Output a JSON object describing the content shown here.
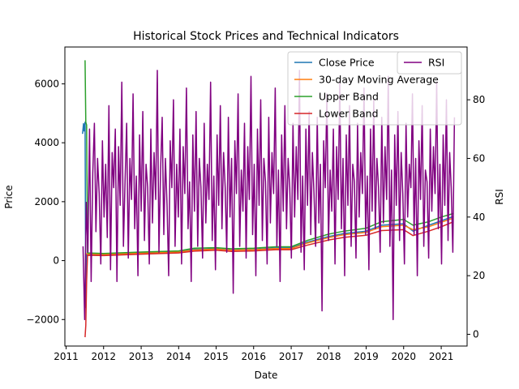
{
  "chart_data": {
    "type": "line",
    "title": "Historical Stock Prices and Technical Indicators",
    "xlabel": "Date",
    "ylabel": "Price",
    "ylabel_right": "RSI",
    "x_range": [
      "2010-12-20",
      "2021-09-10"
    ],
    "x_ticks": [
      "2011",
      "2012",
      "2013",
      "2014",
      "2015",
      "2016",
      "2017",
      "2018",
      "2019",
      "2020",
      "2021"
    ],
    "y_left_range": [
      -2900,
      7250
    ],
    "y_left_ticks": [
      -2000,
      0,
      2000,
      4000,
      6000
    ],
    "y_right_range": [
      -4,
      98
    ],
    "y_right_ticks": [
      0,
      20,
      40,
      60,
      80
    ],
    "grid": false,
    "legend_left": {
      "placement": "upper-right",
      "entries": [
        "Close Price",
        "30-day Moving Average",
        "Upper Band",
        "Lower Band"
      ]
    },
    "legend_right": {
      "placement": "upper-right",
      "entries": [
        "RSI"
      ]
    },
    "series": [
      {
        "name": "Close Price",
        "axis": "left",
        "color": "#1f77b4",
        "points": [
          [
            "2011-06-10",
            4300
          ],
          [
            "2011-06-20",
            4650
          ],
          [
            "2011-06-25",
            4400
          ],
          [
            "2011-07-05",
            4700
          ],
          [
            "2011-07-12",
            -1600
          ],
          [
            "2011-07-20",
            220
          ],
          [
            "2012-01-01",
            200
          ],
          [
            "2013-01-01",
            260
          ],
          [
            "2014-01-01",
            300
          ],
          [
            "2014-06-01",
            380
          ],
          [
            "2015-01-01",
            400
          ],
          [
            "2015-06-01",
            360
          ],
          [
            "2016-01-01",
            380
          ],
          [
            "2016-08-01",
            430
          ],
          [
            "2017-01-01",
            430
          ],
          [
            "2017-06-01",
            620
          ],
          [
            "2018-01-01",
            820
          ],
          [
            "2018-06-01",
            920
          ],
          [
            "2019-01-01",
            1000
          ],
          [
            "2019-06-01",
            1200
          ],
          [
            "2020-01-01",
            1250
          ],
          [
            "2020-04-01",
            1000
          ],
          [
            "2020-09-01",
            1200
          ],
          [
            "2021-01-01",
            1350
          ],
          [
            "2021-05-01",
            1500
          ]
        ]
      },
      {
        "name": "30-day Moving Average",
        "axis": "left",
        "color": "#ff7f0e",
        "points": [
          [
            "2011-07-05",
            230
          ],
          [
            "2012-01-01",
            210
          ],
          [
            "2013-01-01",
            250
          ],
          [
            "2014-01-01",
            290
          ],
          [
            "2014-06-01",
            360
          ],
          [
            "2015-01-01",
            390
          ],
          [
            "2015-06-01",
            350
          ],
          [
            "2016-01-01",
            370
          ],
          [
            "2016-08-01",
            410
          ],
          [
            "2017-01-01",
            410
          ],
          [
            "2017-06-01",
            590
          ],
          [
            "2018-01-01",
            780
          ],
          [
            "2018-06-01",
            880
          ],
          [
            "2019-01-01",
            960
          ],
          [
            "2019-06-01",
            1150
          ],
          [
            "2020-01-01",
            1200
          ],
          [
            "2020-04-01",
            1050
          ],
          [
            "2020-09-01",
            1150
          ],
          [
            "2021-01-01",
            1300
          ],
          [
            "2021-05-01",
            1450
          ]
        ]
      },
      {
        "name": "Upper Band",
        "axis": "left",
        "color": "#2ca02c",
        "points": [
          [
            "2011-07-05",
            6800
          ],
          [
            "2011-07-12",
            4700
          ],
          [
            "2011-07-20",
            4600
          ],
          [
            "2011-07-28",
            260
          ],
          [
            "2012-01-01",
            240
          ],
          [
            "2013-01-01",
            290
          ],
          [
            "2014-01-01",
            330
          ],
          [
            "2014-06-01",
            420
          ],
          [
            "2015-01-01",
            440
          ],
          [
            "2015-06-01",
            400
          ],
          [
            "2016-01-01",
            420
          ],
          [
            "2016-08-01",
            470
          ],
          [
            "2017-01-01",
            470
          ],
          [
            "2017-06-01",
            680
          ],
          [
            "2018-01-01",
            900
          ],
          [
            "2018-06-01",
            1000
          ],
          [
            "2019-01-01",
            1100
          ],
          [
            "2019-06-01",
            1320
          ],
          [
            "2020-01-01",
            1400
          ],
          [
            "2020-04-01",
            1200
          ],
          [
            "2020-09-01",
            1320
          ],
          [
            "2021-01-01",
            1480
          ],
          [
            "2021-05-01",
            1600
          ]
        ]
      },
      {
        "name": "Lower Band",
        "axis": "left",
        "color": "#d62728",
        "points": [
          [
            "2011-07-05",
            -2600
          ],
          [
            "2011-07-12",
            -2200
          ],
          [
            "2011-07-20",
            -700
          ],
          [
            "2011-07-28",
            180
          ],
          [
            "2012-01-01",
            170
          ],
          [
            "2013-01-01",
            220
          ],
          [
            "2014-01-01",
            260
          ],
          [
            "2014-06-01",
            320
          ],
          [
            "2015-01-01",
            350
          ],
          [
            "2015-06-01",
            310
          ],
          [
            "2016-01-01",
            330
          ],
          [
            "2016-08-01",
            370
          ],
          [
            "2017-01-01",
            370
          ],
          [
            "2017-06-01",
            520
          ],
          [
            "2018-01-01",
            700
          ],
          [
            "2018-06-01",
            790
          ],
          [
            "2019-01-01",
            860
          ],
          [
            "2019-06-01",
            1020
          ],
          [
            "2020-01-01",
            1050
          ],
          [
            "2020-04-01",
            850
          ],
          [
            "2020-09-01",
            1000
          ],
          [
            "2021-01-01",
            1150
          ],
          [
            "2021-05-01",
            1320
          ]
        ]
      },
      {
        "name": "RSI",
        "axis": "right",
        "color": "#800080",
        "start": "2011-06-15",
        "end": "2021-05-10",
        "values": [
          30,
          5,
          45,
          28,
          70,
          18,
          55,
          72,
          35,
          60,
          48,
          24,
          66,
          40,
          58,
          33,
          78,
          22,
          62,
          50,
          70,
          18,
          64,
          44,
          86,
          30,
          52,
          72,
          26,
          60,
          46,
          82,
          36,
          54,
          20,
          68,
          42,
          76,
          32,
          58,
          50,
          24,
          70,
          38,
          62,
          46,
          90,
          28,
          56,
          74,
          34,
          60,
          44,
          20,
          66,
          50,
          80,
          30,
          58,
          40,
          70,
          24,
          64,
          48,
          84,
          36,
          52,
          18,
          68,
          42,
          76,
          30,
          60,
          50,
          26,
          72,
          38,
          58,
          46,
          86,
          32,
          54,
          22,
          68,
          44,
          78,
          36,
          62,
          50,
          28,
          74,
          40,
          60,
          14,
          66,
          48,
          82,
          30,
          56,
          42,
          72,
          26,
          64,
          46,
          88,
          34,
          58,
          20,
          70,
          44,
          80,
          32,
          60,
          52,
          24,
          74,
          38,
          62,
          48,
          84,
          30,
          56,
          18,
          68,
          42,
          78,
          36,
          60,
          50,
          26,
          72,
          40,
          64,
          46,
          90,
          28,
          54,
          22,
          70,
          44,
          76,
          34,
          62,
          48,
          30,
          74,
          38,
          58,
          8,
          66,
          50,
          82,
          32,
          56,
          42,
          70,
          24,
          64,
          46,
          86,
          36,
          60,
          20,
          68,
          44,
          78,
          30,
          58,
          52,
          26,
          72,
          40,
          62,
          48,
          84,
          34,
          54,
          22,
          70,
          42,
          80,
          36,
          60,
          50,
          28,
          74,
          38,
          64,
          46,
          88,
          30,
          56,
          5,
          68,
          44,
          76,
          32,
          62,
          48,
          24,
          72,
          40,
          58,
          50,
          82,
          34,
          60,
          20,
          66,
          46,
          78,
          30,
          56,
          52,
          26,
          70,
          42,
          64,
          48,
          86,
          36,
          58,
          24,
          68,
          44,
          80,
          32,
          62,
          50,
          28,
          74
        ]
      }
    ]
  }
}
